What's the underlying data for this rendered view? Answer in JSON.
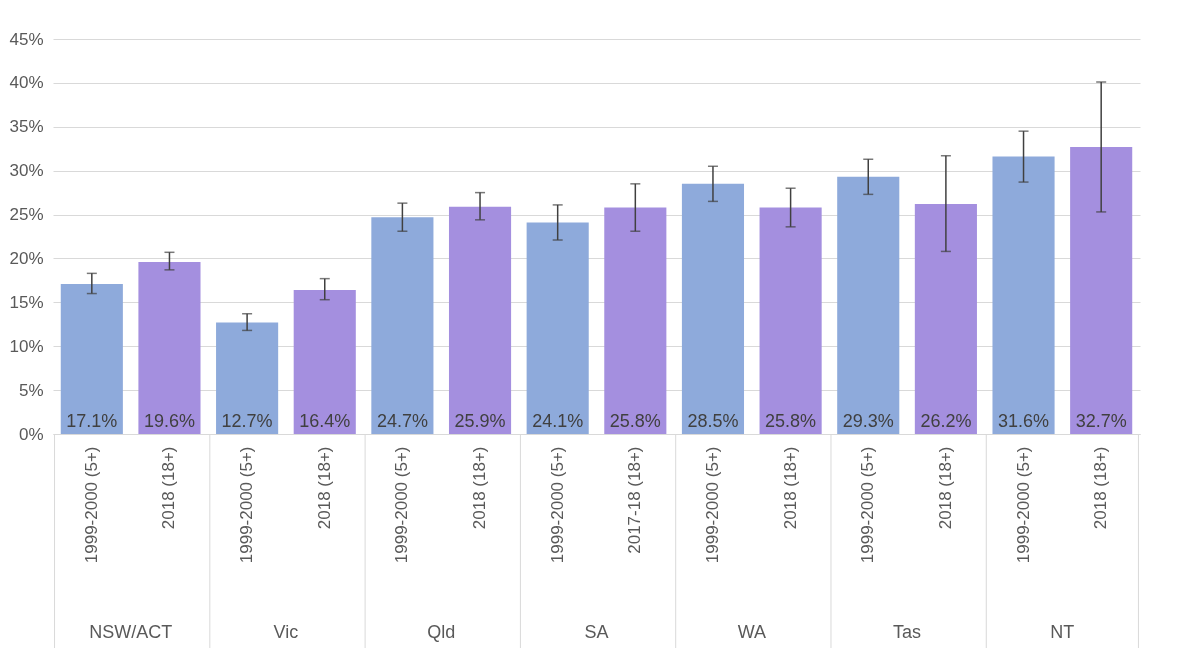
{
  "chart_data": {
    "type": "bar",
    "categories": [
      "1999-2000 (5+)",
      "2018 (18+)",
      "1999-2000 (5+)",
      "2018 (18+)",
      "1999-2000 (5+)",
      "2018 (18+)",
      "1999-2000 (5+)",
      "2017-18 (18+)",
      "1999-2000 (5+)",
      "2018 (18+)",
      "1999-2000 (5+)",
      "2018 (18+)",
      "1999-2000 (5+)",
      "2018 (18+)"
    ],
    "values": [
      17.1,
      19.6,
      12.7,
      16.4,
      24.7,
      25.9,
      24.1,
      25.8,
      28.5,
      25.8,
      29.3,
      26.2,
      31.6,
      32.7
    ],
    "value_labels": [
      "17.1%",
      "19.6%",
      "12.7%",
      "16.4%",
      "24.7%",
      "25.9%",
      "24.1%",
      "25.8%",
      "28.5%",
      "25.8%",
      "29.3%",
      "26.2%",
      "31.6%",
      "32.7%"
    ],
    "colors": [
      "#8eaadb",
      "#a48fdf",
      "#8eaadb",
      "#a48fdf",
      "#8eaadb",
      "#a48fdf",
      "#8eaadb",
      "#a48fdf",
      "#8eaadb",
      "#a48fdf",
      "#8eaadb",
      "#a48fdf",
      "#8eaadb",
      "#a48fdf"
    ],
    "errors": [
      [
        16.0,
        18.3
      ],
      [
        18.7,
        20.7
      ],
      [
        11.8,
        13.7
      ],
      [
        15.3,
        17.7
      ],
      [
        23.1,
        26.3
      ],
      [
        24.4,
        27.5
      ],
      [
        22.1,
        26.1
      ],
      [
        23.1,
        28.5
      ],
      [
        26.5,
        30.5
      ],
      [
        23.6,
        28.0
      ],
      [
        27.3,
        31.3
      ],
      [
        20.8,
        31.7
      ],
      [
        28.7,
        34.5
      ],
      [
        25.3,
        40.1
      ]
    ],
    "annotations": [
      "NSW/ACT",
      "Vic",
      "Qld",
      "SA",
      "WA",
      "Tas",
      "NT"
    ],
    "ylim": [
      0,
      45
    ],
    "yticks": [
      {
        "value": 0,
        "label": "0%"
      },
      {
        "value": 5,
        "label": "5%"
      },
      {
        "value": 10,
        "label": "10%"
      },
      {
        "value": 15,
        "label": "15%"
      },
      {
        "value": 20,
        "label": "20%"
      },
      {
        "value": 25,
        "label": "25%"
      },
      {
        "value": 30,
        "label": "30%"
      },
      {
        "value": 35,
        "label": "35%"
      },
      {
        "value": 40,
        "label": "40%"
      },
      {
        "value": 45,
        "label": "45%"
      }
    ],
    "grid": true
  }
}
